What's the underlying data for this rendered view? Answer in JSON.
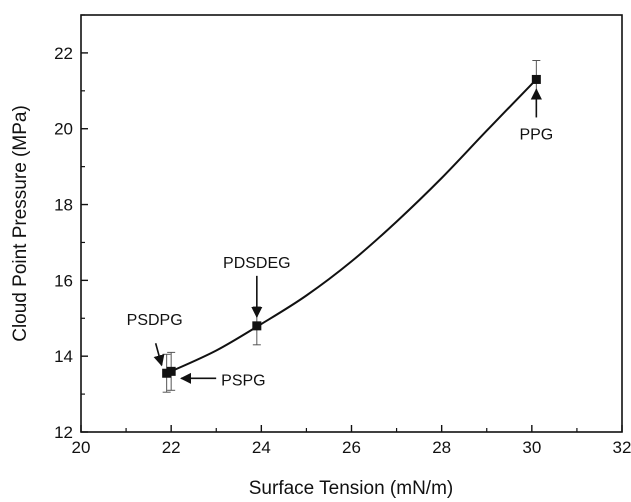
{
  "chart_data": {
    "type": "scatter",
    "title": "",
    "xlabel": "Surface Tension (mN/m)",
    "ylabel": "Cloud Point Pressure (MPa)",
    "xlim": [
      20,
      32
    ],
    "ylim": [
      12,
      23
    ],
    "grid": false,
    "x_ticks": [
      20,
      22,
      24,
      26,
      28,
      30,
      32
    ],
    "y_ticks": [
      12,
      14,
      16,
      18,
      20,
      22
    ],
    "series": [
      {
        "marker": "square",
        "color": "#111111",
        "points": [
          {
            "x": 21.9,
            "y": 13.55,
            "err": 0.5,
            "label": "PSDPG"
          },
          {
            "x": 22.0,
            "y": 13.6,
            "err": 0.5,
            "label": "PSPG"
          },
          {
            "x": 23.9,
            "y": 14.8,
            "err": 0.5,
            "label": "PDSDEG"
          },
          {
            "x": 30.1,
            "y": 21.3,
            "err": 0.5,
            "label": "PPG"
          }
        ]
      }
    ],
    "fit_curve": {
      "type": "polynomial",
      "color": "#111111",
      "x": [
        22.0,
        23.0,
        24.0,
        25.0,
        26.0,
        27.0,
        28.0,
        29.0,
        30.1
      ],
      "y": [
        13.6,
        14.15,
        14.85,
        15.6,
        16.5,
        17.55,
        18.7,
        19.95,
        21.3
      ]
    },
    "annotations": [
      {
        "text": "PSDPG",
        "target_x": 21.9,
        "target_y": 13.55,
        "arrow": "down"
      },
      {
        "text": "PSPG",
        "target_x": 22.0,
        "target_y": 13.6,
        "arrow": "left"
      },
      {
        "text": "PDSDEG",
        "target_x": 23.9,
        "target_y": 14.8,
        "arrow": "down"
      },
      {
        "text": "PPG",
        "target_x": 30.1,
        "target_y": 21.3,
        "arrow": "up"
      }
    ]
  }
}
